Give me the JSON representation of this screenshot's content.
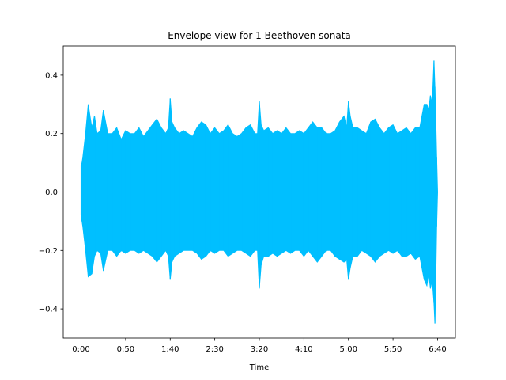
{
  "chart_data": {
    "type": "area",
    "title": "Envelope view for 1 Beethoven sonata",
    "xlabel": "Time",
    "ylabel": "",
    "x_unit": "seconds",
    "xlim": [
      -20,
      420
    ],
    "ylim": [
      -0.5,
      0.5
    ],
    "x_ticks": [
      {
        "value": 0,
        "label": "0:00"
      },
      {
        "value": 50,
        "label": "0:50"
      },
      {
        "value": 100,
        "label": "1:40"
      },
      {
        "value": 150,
        "label": "2:30"
      },
      {
        "value": 200,
        "label": "3:20"
      },
      {
        "value": 250,
        "label": "4:10"
      },
      {
        "value": 300,
        "label": "5:00"
      },
      {
        "value": 350,
        "label": "5:50"
      },
      {
        "value": 400,
        "label": "6:40"
      }
    ],
    "y_ticks": [
      {
        "value": -0.4,
        "label": "−0.4"
      },
      {
        "value": -0.2,
        "label": "−0.2"
      },
      {
        "value": 0.0,
        "label": "0.0"
      },
      {
        "value": 0.2,
        "label": "0.2"
      },
      {
        "value": 0.4,
        "label": "0.4"
      }
    ],
    "grid": false,
    "color": "#00bfff",
    "series": [
      {
        "x": [
          0,
          1,
          2,
          5,
          8,
          12,
          15,
          18,
          22,
          25,
          30,
          35,
          40,
          45,
          50,
          55,
          60,
          65,
          70,
          75,
          80,
          85,
          90,
          95,
          98,
          100,
          102,
          105,
          110,
          115,
          120,
          125,
          130,
          135,
          140,
          145,
          150,
          155,
          160,
          165,
          170,
          175,
          180,
          185,
          190,
          195,
          198,
          200,
          202,
          205,
          210,
          215,
          220,
          225,
          230,
          235,
          240,
          245,
          250,
          255,
          260,
          265,
          270,
          275,
          280,
          285,
          290,
          295,
          298,
          300,
          302,
          305,
          310,
          315,
          320,
          325,
          330,
          335,
          340,
          345,
          350,
          355,
          360,
          365,
          370,
          375,
          380,
          385,
          388,
          390,
          392,
          394,
          396,
          397,
          398,
          399,
          400
        ],
        "upper": [
          0.09,
          0.1,
          0.12,
          0.2,
          0.3,
          0.22,
          0.26,
          0.2,
          0.21,
          0.28,
          0.2,
          0.2,
          0.22,
          0.18,
          0.21,
          0.2,
          0.2,
          0.22,
          0.19,
          0.21,
          0.23,
          0.25,
          0.22,
          0.2,
          0.22,
          0.32,
          0.24,
          0.22,
          0.2,
          0.21,
          0.2,
          0.19,
          0.22,
          0.24,
          0.23,
          0.2,
          0.22,
          0.2,
          0.21,
          0.23,
          0.2,
          0.19,
          0.2,
          0.22,
          0.23,
          0.2,
          0.2,
          0.31,
          0.23,
          0.21,
          0.22,
          0.2,
          0.21,
          0.2,
          0.22,
          0.2,
          0.2,
          0.21,
          0.2,
          0.22,
          0.24,
          0.22,
          0.22,
          0.2,
          0.2,
          0.21,
          0.24,
          0.26,
          0.22,
          0.31,
          0.26,
          0.22,
          0.22,
          0.21,
          0.2,
          0.24,
          0.25,
          0.22,
          0.2,
          0.22,
          0.23,
          0.2,
          0.21,
          0.22,
          0.2,
          0.22,
          0.22,
          0.3,
          0.3,
          0.28,
          0.33,
          0.3,
          0.45,
          0.36,
          0.25,
          0.12,
          0.0
        ],
        "lower": [
          -0.08,
          -0.1,
          -0.12,
          -0.2,
          -0.29,
          -0.28,
          -0.22,
          -0.2,
          -0.21,
          -0.27,
          -0.2,
          -0.2,
          -0.22,
          -0.2,
          -0.21,
          -0.2,
          -0.2,
          -0.21,
          -0.2,
          -0.21,
          -0.22,
          -0.24,
          -0.22,
          -0.2,
          -0.22,
          -0.3,
          -0.24,
          -0.22,
          -0.21,
          -0.2,
          -0.2,
          -0.2,
          -0.21,
          -0.23,
          -0.22,
          -0.2,
          -0.21,
          -0.2,
          -0.2,
          -0.22,
          -0.21,
          -0.2,
          -0.2,
          -0.21,
          -0.22,
          -0.2,
          -0.2,
          -0.33,
          -0.25,
          -0.22,
          -0.22,
          -0.21,
          -0.22,
          -0.21,
          -0.2,
          -0.21,
          -0.2,
          -0.2,
          -0.22,
          -0.2,
          -0.22,
          -0.24,
          -0.22,
          -0.2,
          -0.2,
          -0.22,
          -0.23,
          -0.24,
          -0.23,
          -0.3,
          -0.26,
          -0.22,
          -0.22,
          -0.2,
          -0.21,
          -0.22,
          -0.24,
          -0.22,
          -0.21,
          -0.2,
          -0.21,
          -0.2,
          -0.22,
          -0.22,
          -0.21,
          -0.23,
          -0.22,
          -0.3,
          -0.32,
          -0.28,
          -0.33,
          -0.3,
          -0.38,
          -0.45,
          -0.3,
          -0.12,
          0.0
        ]
      }
    ]
  }
}
